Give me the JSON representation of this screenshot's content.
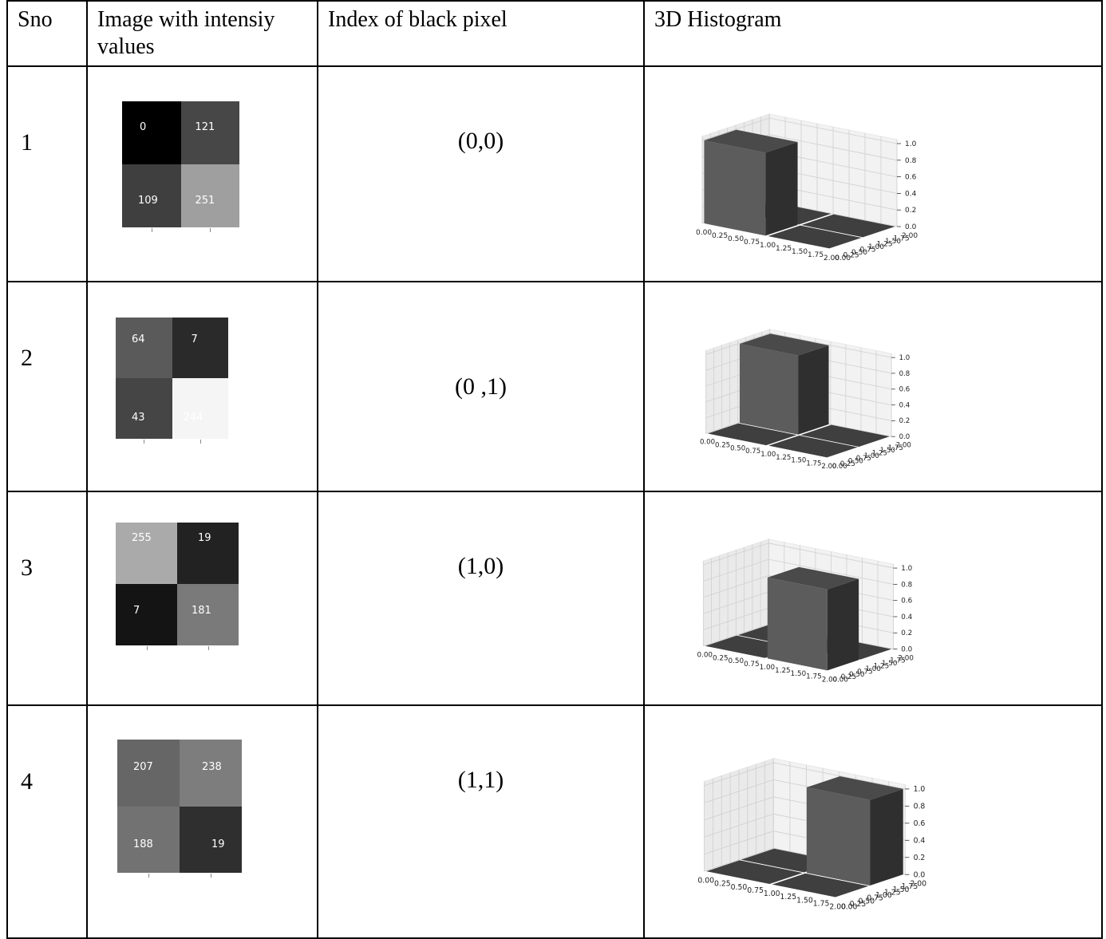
{
  "table": {
    "headers": {
      "sno": "Sno",
      "image": "Image with intensiy values",
      "index": "Index of black pixel",
      "hist": "3D Histogram"
    },
    "rows": [
      {
        "sno": "1",
        "pixels": [
          {
            "value": "0",
            "color": "#000000",
            "text_color": "#ffffff"
          },
          {
            "value": "121",
            "color": "#474747",
            "text_color": "#ffffff"
          },
          {
            "value": "109",
            "color": "#3f3f3f",
            "text_color": "#ffffff"
          },
          {
            "value": "251",
            "color": "#9f9f9f",
            "text_color": "#ffffff"
          }
        ],
        "index": "(0,0)",
        "peak": "0,0"
      },
      {
        "sno": "2",
        "pixels": [
          {
            "value": "64",
            "color": "#5a5a5a",
            "text_color": "#ffffff"
          },
          {
            "value": "7",
            "color": "#2a2a2a",
            "text_color": "#ffffff"
          },
          {
            "value": "43",
            "color": "#454545",
            "text_color": "#ffffff"
          },
          {
            "value": "244",
            "color": "#f5f5f5",
            "text_color": "#ffffff"
          }
        ],
        "index": "(0 ,1)",
        "peak": "0,1"
      },
      {
        "sno": "3",
        "pixels": [
          {
            "value": "255",
            "color": "#aaaaaa",
            "text_color": "#ffffff"
          },
          {
            "value": "19",
            "color": "#222222",
            "text_color": "#ffffff"
          },
          {
            "value": "7",
            "color": "#141414",
            "text_color": "#ffffff"
          },
          {
            "value": "181",
            "color": "#7a7a7a",
            "text_color": "#ffffff"
          }
        ],
        "index": "(1,0)",
        "peak": "1,0"
      },
      {
        "sno": "4",
        "pixels": [
          {
            "value": "207",
            "color": "#666666",
            "text_color": "#ffffff"
          },
          {
            "value": "238",
            "color": "#7d7d7d",
            "text_color": "#ffffff"
          },
          {
            "value": "188",
            "color": "#727272",
            "text_color": "#ffffff"
          },
          {
            "value": "19",
            "color": "#2f2f2f",
            "text_color": "#ffffff"
          }
        ],
        "index": "(1,1)",
        "peak": "1,1"
      }
    ]
  },
  "histogram_axes": {
    "x_ticks": [
      "0.00",
      "0.25",
      "0.50",
      "0.75",
      "1.00",
      "1.25",
      "1.50",
      "1.75",
      "2.00"
    ],
    "y_ticks": [
      "0.00",
      "0.25",
      "0.50",
      "0.75",
      "1.00",
      "1.25",
      "1.50",
      "1.75",
      "2.00"
    ],
    "z_ticks": [
      "0.0",
      "0.2",
      "0.4",
      "0.6",
      "0.8",
      "1.0"
    ],
    "bar_colors": {
      "front": "#5c5c5c",
      "side": "#2f2f2f",
      "top": "#4a4a4a",
      "floor": "#3f3f3f"
    }
  }
}
